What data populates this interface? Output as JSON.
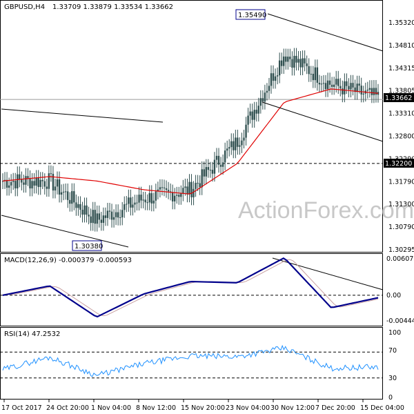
{
  "header": {
    "instrument": "GBPUSD,H4",
    "ohlc": "1.33709 1.33879 1.33534 1.33662"
  },
  "watermark": "ActionForex.com",
  "colors": {
    "candle": "#2f4f4f",
    "ma": "#e00000",
    "macd": "#00008b",
    "signal": "#c8a0a0",
    "rsi": "#1e90ff",
    "frame": "#000000"
  },
  "price_panel": {
    "y_ticks": [
      "1.35320",
      "1.34810",
      "1.34315",
      "1.33805",
      "1.33310",
      "1.32800",
      "1.32290",
      "1.31790",
      "1.31300",
      "1.30790",
      "1.30295"
    ],
    "current_price": "1.33662",
    "support_level": "1.32200",
    "annotations": {
      "high": "1.35490",
      "low": "1.30380"
    }
  },
  "macd_panel": {
    "label": "MACD(12,26,9) -0.000379 -0.000593",
    "y_ticks": [
      "0.006073",
      "0.00",
      "-0.004441"
    ]
  },
  "rsi_panel": {
    "label": "RSI(14) 47.2532",
    "y_ticks": [
      "100",
      "70",
      "30",
      "0"
    ]
  },
  "x_ticks": [
    "17 Oct 2017",
    "24 Oct 20:00",
    "1 Nov 04:00",
    "8 Nov 12:00",
    "15 Nov 20:00",
    "23 Nov 04:00",
    "30 Nov 12:00",
    "7 Dec 20:00",
    "15 Dec 04:00"
  ],
  "chart_data": [
    {
      "type": "line",
      "chart_kind": "candlestick (H4)",
      "title": "GBPUSD,H4 1.33709 1.33879 1.33534 1.33662",
      "xlabel": "",
      "ylabel": "",
      "x": [
        "17 Oct 2017",
        "24 Oct 20:00",
        "1 Nov 04:00",
        "8 Nov 12:00",
        "15 Nov 20:00",
        "23 Nov 04:00",
        "30 Nov 12:00",
        "7 Dec 20:00",
        "15 Dec 04:00"
      ],
      "ylim": [
        1.3023,
        1.3585
      ],
      "series": [
        {
          "values": [
            1.318,
            1.318,
            1.309,
            1.314,
            1.316,
            1.327,
            1.347,
            1.34,
            1.337
          ]
        },
        {
          "values": [
            1.318,
            1.319,
            1.318,
            1.316,
            1.315,
            1.322,
            1.336,
            1.339,
            1.338
          ]
        }
      ],
      "annotations": [
        {
          "label": "1.35490",
          "x": "30 Nov 12:00",
          "y": 1.3549
        },
        {
          "label": "1.30380",
          "x": "1 Nov 04:00",
          "y": 1.3038
        }
      ],
      "horizontal_lines": [
        1.3366,
        1.322
      ]
    },
    {
      "type": "line",
      "title": "MACD(12,26,9) -0.000379 -0.000593",
      "xlabel": "",
      "ylabel": "",
      "x": [
        "17 Oct 2017",
        "24 Oct 20:00",
        "1 Nov 04:00",
        "8 Nov 12:00",
        "15 Nov 20:00",
        "23 Nov 04:00",
        "30 Nov 12:00",
        "7 Dec 20:00",
        "15 Dec 04:00"
      ],
      "ylim": [
        -0.004441,
        0.006073
      ],
      "series": [
        {
          "values": [
            0.0,
            0.0015,
            -0.0035,
            0.0002,
            0.0022,
            0.002,
            0.006,
            -0.002,
            -0.0004
          ]
        }
      ]
    },
    {
      "type": "line",
      "title": "RSI(14) 47.2532",
      "xlabel": "",
      "ylabel": "",
      "x": [
        "17 Oct 2017",
        "24 Oct 20:00",
        "1 Nov 04:00",
        "8 Nov 12:00",
        "15 Nov 20:00",
        "23 Nov 04:00",
        "30 Nov 12:00",
        "7 Dec 20:00",
        "15 Dec 04:00"
      ],
      "ylim": [
        0,
        100
      ],
      "levels": [
        70,
        30
      ],
      "series": [
        {
          "values": [
            43,
            62,
            34,
            52,
            64,
            63,
            76,
            45,
            47
          ]
        }
      ]
    }
  ]
}
